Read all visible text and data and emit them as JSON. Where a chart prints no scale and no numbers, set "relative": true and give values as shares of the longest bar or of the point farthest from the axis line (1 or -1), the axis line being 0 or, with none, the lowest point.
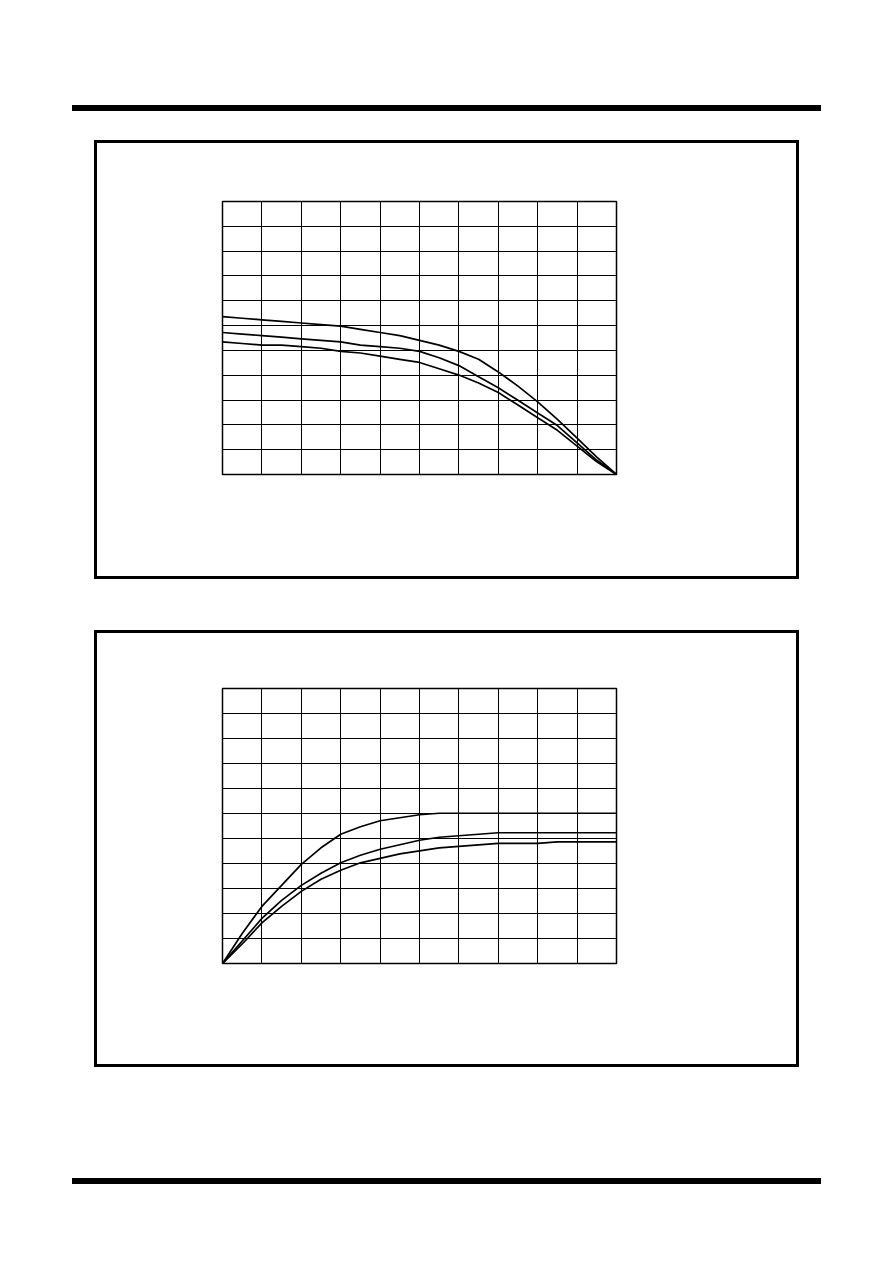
{
  "chart_data": [
    {
      "type": "line",
      "relative": true,
      "grid": true,
      "tick_labels": false,
      "categories": [
        null,
        null,
        null,
        null,
        null,
        null,
        null,
        null,
        null,
        null,
        null,
        null,
        null,
        null,
        null,
        null,
        null,
        null,
        null,
        null,
        null
      ],
      "series": [
        {
          "color": "#000000",
          "values": [
            1,
            0.99,
            0.98,
            0.97,
            0.96,
            0.95,
            0.94,
            0.92,
            0.9,
            0.88,
            0.85,
            0.82,
            0.78,
            0.73,
            0.65,
            0.56,
            0.46,
            0.35,
            0.23,
            0.11,
            0
          ]
        },
        {
          "color": "#000000",
          "values": [
            0.9,
            0.89,
            0.88,
            0.87,
            0.86,
            0.85,
            0.84,
            0.82,
            0.81,
            0.8,
            0.78,
            0.74,
            0.69,
            0.62,
            0.55,
            0.47,
            0.39,
            0.31,
            0.2,
            0.09,
            0
          ]
        },
        {
          "color": "#000000",
          "values": [
            0.84,
            0.83,
            0.82,
            0.82,
            0.81,
            0.8,
            0.78,
            0.77,
            0.75,
            0.73,
            0.71,
            0.67,
            0.63,
            0.58,
            0.52,
            0.44,
            0.36,
            0.28,
            0.18,
            0.08,
            0
          ]
        }
      ]
    },
    {
      "type": "line",
      "relative": true,
      "grid": true,
      "tick_labels": false,
      "categories": [
        null,
        null,
        null,
        null,
        null,
        null,
        null,
        null,
        null,
        null,
        null,
        null,
        null,
        null,
        null,
        null,
        null,
        null,
        null,
        null,
        null
      ],
      "series": [
        {
          "color": "#000000",
          "values": [
            0,
            0.2,
            0.38,
            0.52,
            0.66,
            0.77,
            0.86,
            0.91,
            0.95,
            0.97,
            0.99,
            1,
            1,
            1,
            1,
            1,
            1,
            1,
            1,
            1,
            1
          ]
        },
        {
          "color": "#000000",
          "values": [
            0,
            0.15,
            0.3,
            0.42,
            0.52,
            0.6,
            0.67,
            0.72,
            0.76,
            0.79,
            0.82,
            0.84,
            0.85,
            0.86,
            0.87,
            0.87,
            0.87,
            0.87,
            0.87,
            0.87,
            0.87
          ]
        },
        {
          "color": "#000000",
          "values": [
            0,
            0.13,
            0.27,
            0.38,
            0.48,
            0.56,
            0.62,
            0.67,
            0.7,
            0.73,
            0.75,
            0.77,
            0.78,
            0.79,
            0.8,
            0.8,
            0.8,
            0.81,
            0.81,
            0.81,
            0.81
          ]
        }
      ]
    }
  ]
}
